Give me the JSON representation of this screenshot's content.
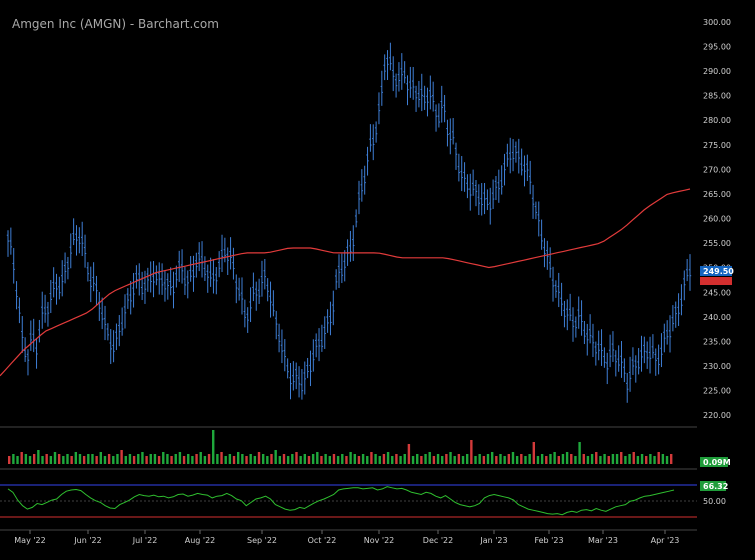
{
  "chart_data": {
    "type": "bar",
    "title": "Amgen Inc (AMGN) - Barchart.com",
    "price_ylim": [
      218,
      302
    ],
    "price_ticks": [
      "300.00",
      "295.00",
      "290.00",
      "285.00",
      "280.00",
      "275.00",
      "270.00",
      "265.00",
      "260.00",
      "255.00",
      "250.00",
      "245.00",
      "240.00",
      "235.00",
      "230.00",
      "225.00",
      "220.00"
    ],
    "x_labels": [
      "May '22",
      "Jun '22",
      "Jul '22",
      "Aug '22",
      "Sep '22",
      "Oct '22",
      "Nov '22",
      "Dec '22",
      "Jan '23",
      "Feb '23",
      "Mar '23",
      "Apr '23"
    ],
    "last_price_label": "249.50",
    "ma_last_label": "",
    "volume_label": "0.09M",
    "rsi_label": "66.32",
    "rsi_mid_label": "50.00",
    "price_series": [
      256,
      252,
      244,
      235,
      232,
      236,
      234,
      240,
      242,
      244,
      247,
      246,
      250,
      254,
      256,
      257,
      252,
      248,
      246,
      243,
      238,
      236,
      233,
      238,
      240,
      244,
      246,
      248,
      246,
      247,
      249,
      247,
      248,
      246,
      246,
      249,
      250,
      247,
      248,
      252,
      251,
      250,
      247,
      249,
      251,
      254,
      252,
      248,
      245,
      240,
      242,
      245,
      246,
      248,
      246,
      240,
      237,
      232,
      229,
      227,
      228,
      226,
      229,
      232,
      234,
      236,
      238,
      241,
      248,
      250,
      252,
      254,
      260,
      266,
      270,
      275,
      278,
      283,
      293,
      291,
      289,
      288,
      290,
      286,
      287,
      285,
      284,
      286,
      283,
      281,
      283,
      278,
      276,
      272,
      268,
      267,
      266,
      265,
      264,
      263,
      264,
      266,
      268,
      271,
      274,
      273,
      272,
      270,
      268,
      262,
      258,
      254,
      250,
      247,
      244,
      242,
      240,
      239,
      240,
      238,
      236,
      235,
      234,
      232,
      231,
      233,
      232,
      230,
      227,
      229,
      231,
      232,
      233,
      233,
      231,
      233,
      236,
      238,
      240,
      243,
      247,
      250
    ],
    "ma_series": [
      228,
      233,
      237,
      239,
      241,
      245,
      247,
      249,
      250,
      251,
      252,
      253,
      253,
      254,
      254,
      253,
      253,
      253,
      252,
      252,
      252,
      251,
      250,
      251,
      252,
      253,
      254,
      255,
      258,
      262,
      265,
      266
    ],
    "volume_series": [
      4,
      5,
      4,
      6,
      5,
      4,
      5,
      7,
      4,
      5,
      4,
      6,
      5,
      4,
      5,
      4,
      6,
      5,
      4,
      5,
      5,
      4,
      6,
      4,
      5,
      4,
      5,
      7,
      4,
      5,
      4,
      5,
      6,
      4,
      5,
      5,
      4,
      6,
      5,
      4,
      5,
      6,
      4,
      5,
      4,
      5,
      6,
      4,
      5,
      17,
      5,
      6,
      4,
      5,
      4,
      6,
      5,
      4,
      5,
      4,
      6,
      5,
      4,
      5,
      7,
      4,
      5,
      4,
      5,
      6,
      4,
      5,
      4,
      5,
      6,
      4,
      5,
      4,
      5,
      4,
      5,
      4,
      6,
      5,
      4,
      5,
      4,
      6,
      5,
      4,
      5,
      6,
      4,
      5,
      4,
      5,
      10,
      4,
      5,
      4,
      5,
      6,
      4,
      5,
      4,
      5,
      6,
      4,
      5,
      4,
      5,
      12,
      4,
      5,
      4,
      5,
      6,
      4,
      5,
      4,
      5,
      6,
      4,
      5,
      4,
      5,
      11,
      4,
      5,
      4,
      5,
      6,
      4,
      5,
      6,
      5,
      4,
      11,
      5,
      4,
      5,
      6,
      4,
      5,
      4,
      5,
      5,
      6,
      4,
      5,
      6,
      4,
      5,
      4,
      5,
      4,
      6,
      5,
      4,
      5
    ],
    "rsi_series": [
      68,
      62,
      48,
      38,
      32,
      35,
      42,
      40,
      44,
      48,
      50,
      58,
      64,
      66,
      67,
      65,
      58,
      52,
      47,
      44,
      38,
      34,
      33,
      40,
      44,
      48,
      54,
      58,
      56,
      55,
      57,
      54,
      55,
      52,
      54,
      58,
      59,
      55,
      57,
      60,
      58,
      57,
      52,
      55,
      56,
      60,
      56,
      50,
      47,
      38,
      44,
      50,
      52,
      55,
      50,
      40,
      36,
      32,
      30,
      31,
      35,
      33,
      38,
      43,
      47,
      50,
      54,
      58,
      66,
      68,
      69,
      70,
      70,
      68,
      69,
      70,
      66,
      68,
      72,
      70,
      68,
      69,
      66,
      62,
      60,
      58,
      62,
      60,
      55,
      52,
      56,
      50,
      44,
      40,
      38,
      36,
      38,
      42,
      52,
      56,
      58,
      56,
      54,
      52,
      48,
      40,
      36,
      32,
      30,
      28,
      26,
      24,
      23,
      24,
      22,
      26,
      28,
      26,
      30,
      31,
      29,
      33,
      30,
      28,
      32,
      36,
      38,
      40,
      46,
      48,
      52,
      55,
      56,
      58,
      60,
      62,
      64,
      66
    ]
  }
}
